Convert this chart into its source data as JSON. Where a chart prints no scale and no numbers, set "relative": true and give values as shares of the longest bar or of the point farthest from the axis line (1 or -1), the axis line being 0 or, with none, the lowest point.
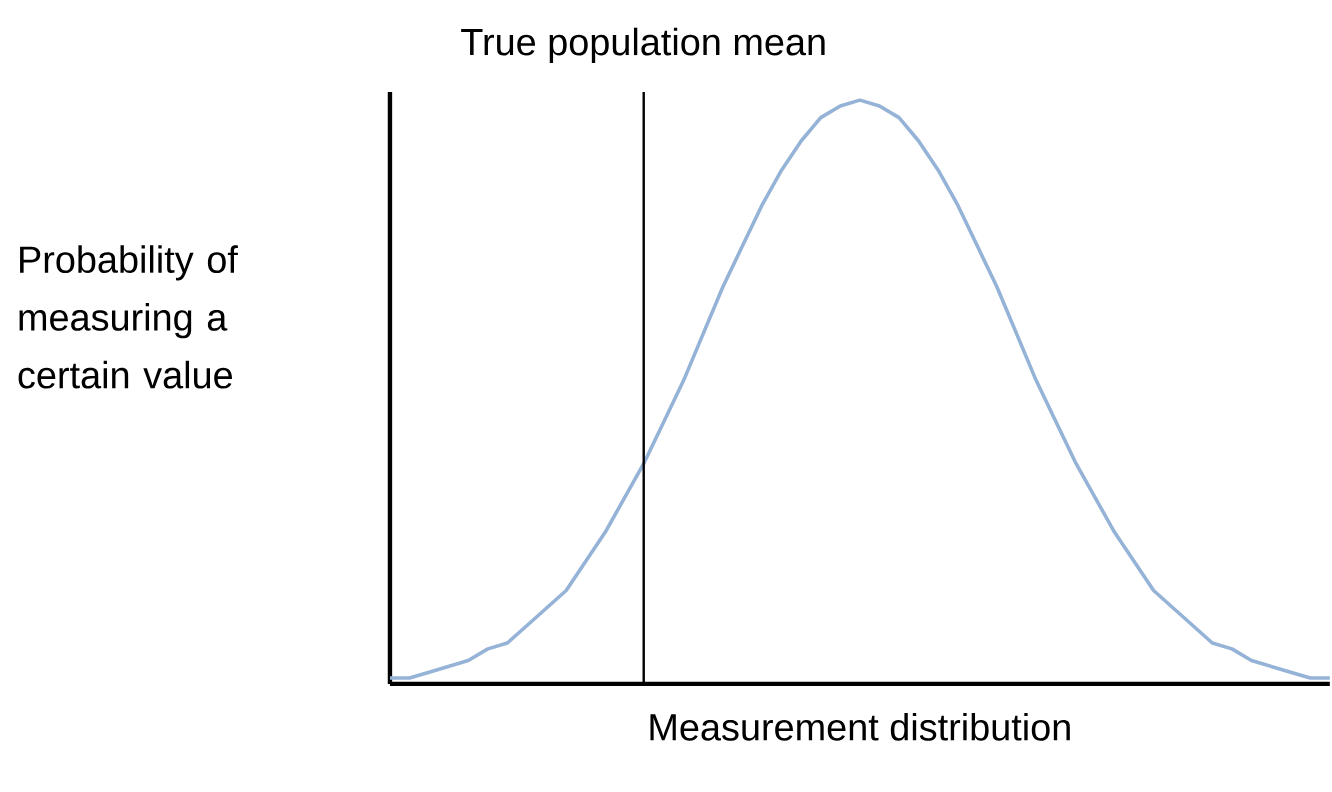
{
  "chart_data": {
    "type": "line",
    "relative": true,
    "marker": "none",
    "xlabel": "Measurement distribution",
    "ylabel": "Probability of measuring a certain value",
    "categories": [
      null,
      null,
      null,
      null,
      null,
      null,
      null,
      null,
      null,
      null,
      null,
      null,
      null,
      null,
      null,
      null,
      null,
      null,
      null,
      null,
      null,
      null,
      null,
      null,
      null,
      null,
      null,
      null,
      null,
      null,
      null,
      null,
      null,
      null,
      null,
      null,
      null,
      null,
      null,
      null,
      null,
      null,
      null,
      null,
      null,
      null,
      null,
      null,
      null
    ],
    "series": [
      {
        "color": "#95b3d7",
        "values": [
          0.01,
          0.01,
          0.02,
          0.03,
          0.04,
          0.06,
          0.07,
          0.1,
          0.13,
          0.16,
          0.21,
          0.26,
          0.32,
          0.38,
          0.45,
          0.52,
          0.6,
          0.68,
          0.75,
          0.82,
          0.88,
          0.93,
          0.97,
          0.99,
          1,
          0.99,
          0.97,
          0.93,
          0.88,
          0.82,
          0.75,
          0.68,
          0.6,
          0.52,
          0.45,
          0.38,
          0.32,
          0.26,
          0.21,
          0.16,
          0.13,
          0.1,
          0.07,
          0.06,
          0.04,
          0.03,
          0.02,
          0.01,
          0.01
        ]
      }
    ],
    "annotations": [
      "True population mean"
    ]
  }
}
